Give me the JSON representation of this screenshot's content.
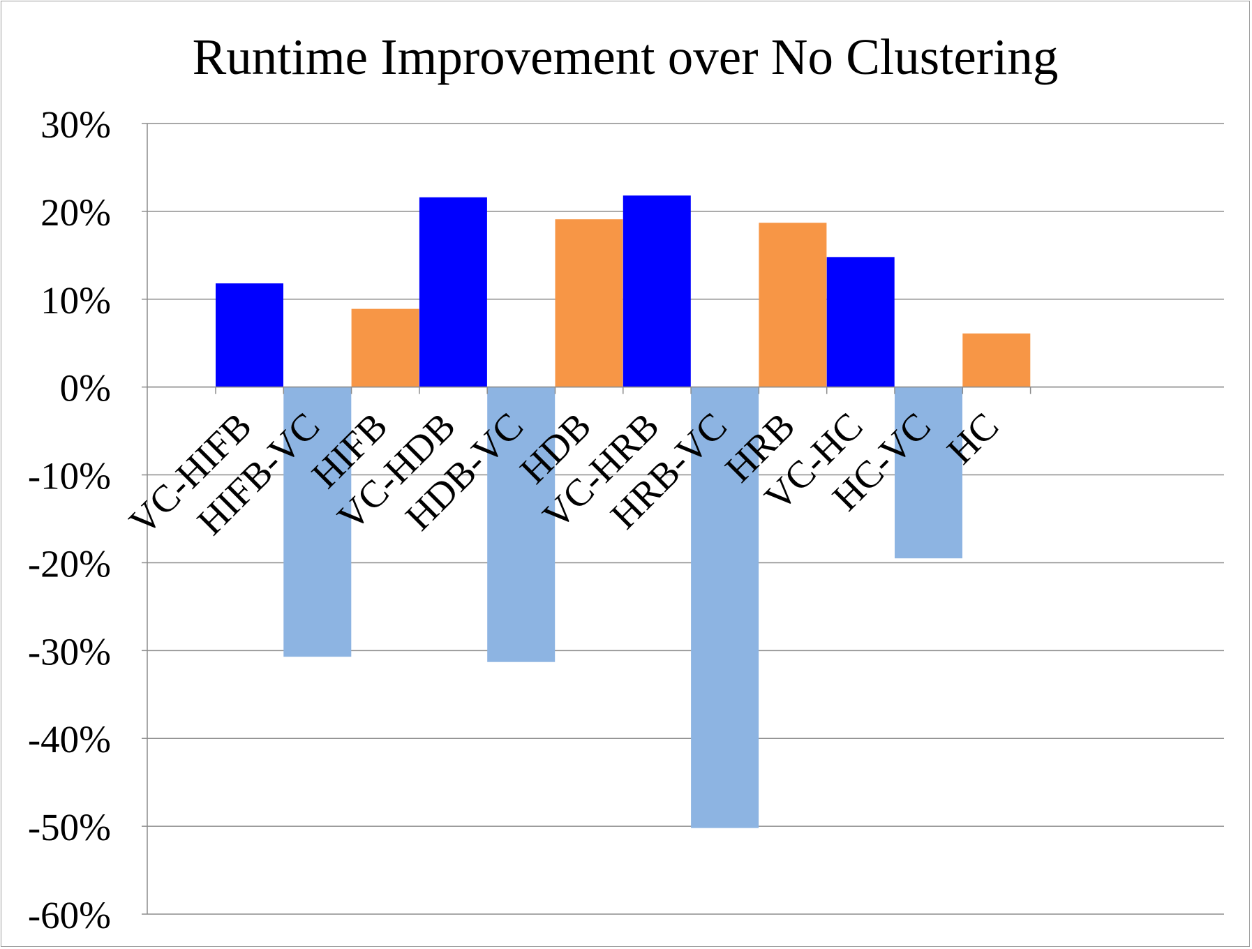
{
  "chart_data": {
    "type": "bar",
    "title": "Runtime Improvement over No Clustering",
    "xlabel": "",
    "ylabel": "",
    "ylim": [
      -60,
      30
    ],
    "y_tick_labels": [
      "30%",
      "20%",
      "10%",
      "0%",
      "-10%",
      "-20%",
      "-30%",
      "-40%",
      "-50%",
      "-60%"
    ],
    "y_tick_values": [
      30,
      20,
      10,
      0,
      -10,
      -20,
      -30,
      -40,
      -50,
      -60
    ],
    "grid": true,
    "legend": "none",
    "categories": [
      "VC-HIFB",
      "HIFB-VC",
      "HIFB",
      "VC-HDB",
      "HDB-VC",
      "HDB",
      "VC-HRB",
      "HRB-VC",
      "HRB",
      "VC-HC",
      "HC-VC",
      "HC"
    ],
    "values": [
      11.8,
      -30.7,
      8.9,
      21.6,
      -31.3,
      19.1,
      21.8,
      -50.2,
      18.7,
      14.8,
      -19.5,
      6.1
    ],
    "bar_colors": [
      "#0000ff",
      "#8db4e2",
      "#f79646",
      "#0000ff",
      "#8db4e2",
      "#f79646",
      "#0000ff",
      "#8db4e2",
      "#f79646",
      "#0000ff",
      "#8db4e2",
      "#f79646"
    ]
  }
}
